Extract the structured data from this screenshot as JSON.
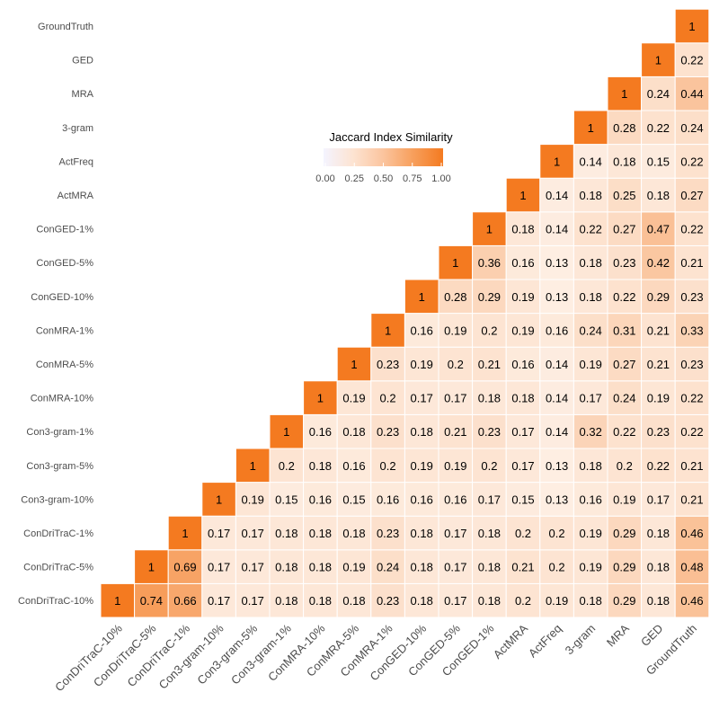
{
  "chart_data": {
    "type": "heatmap",
    "title": "",
    "xlabel": "",
    "ylabel": "",
    "categories": [
      "ConDriTraC-10%",
      "ConDriTraC-5%",
      "ConDriTraC-1%",
      "Con3-gram-10%",
      "Con3-gram-5%",
      "Con3-gram-1%",
      "ConMRA-10%",
      "ConMRA-5%",
      "ConMRA-1%",
      "ConGED-10%",
      "ConGED-5%",
      "ConGED-1%",
      "ActMRA",
      "ActFreq",
      "3-gram",
      "MRA",
      "GED",
      "GroundTruth"
    ],
    "rows": [
      {
        "name": "ConDriTraC-10%",
        "values": [
          1,
          0.74,
          0.66,
          0.17,
          0.17,
          0.18,
          0.18,
          0.18,
          0.23,
          0.18,
          0.17,
          0.18,
          0.2,
          0.19,
          0.18,
          0.29,
          0.18,
          0.46
        ]
      },
      {
        "name": "ConDriTraC-5%",
        "values": [
          1,
          0.69,
          0.17,
          0.17,
          0.18,
          0.18,
          0.19,
          0.24,
          0.18,
          0.17,
          0.18,
          0.21,
          0.2,
          0.19,
          0.29,
          0.18,
          0.48
        ]
      },
      {
        "name": "ConDriTraC-1%",
        "values": [
          1,
          0.17,
          0.17,
          0.18,
          0.18,
          0.18,
          0.23,
          0.18,
          0.17,
          0.18,
          0.2,
          0.2,
          0.19,
          0.29,
          0.18,
          0.46
        ]
      },
      {
        "name": "Con3-gram-10%",
        "values": [
          1,
          0.19,
          0.15,
          0.16,
          0.15,
          0.16,
          0.16,
          0.16,
          0.17,
          0.15,
          0.13,
          0.16,
          0.19,
          0.17,
          0.21
        ]
      },
      {
        "name": "Con3-gram-5%",
        "values": [
          1,
          0.2,
          0.18,
          0.16,
          0.2,
          0.19,
          0.19,
          0.2,
          0.17,
          0.13,
          0.18,
          0.2,
          0.22,
          0.21
        ]
      },
      {
        "name": "Con3-gram-1%",
        "values": [
          1,
          0.16,
          0.18,
          0.23,
          0.18,
          0.21,
          0.23,
          0.17,
          0.14,
          0.32,
          0.22,
          0.23,
          0.22
        ]
      },
      {
        "name": "ConMRA-10%",
        "values": [
          1,
          0.19,
          0.2,
          0.17,
          0.17,
          0.18,
          0.18,
          0.14,
          0.17,
          0.24,
          0.19,
          0.22
        ]
      },
      {
        "name": "ConMRA-5%",
        "values": [
          1,
          0.23,
          0.19,
          0.2,
          0.21,
          0.16,
          0.14,
          0.19,
          0.27,
          0.21,
          0.23
        ]
      },
      {
        "name": "ConMRA-1%",
        "values": [
          1,
          0.16,
          0.19,
          0.2,
          0.19,
          0.16,
          0.24,
          0.31,
          0.21,
          0.33
        ]
      },
      {
        "name": "ConGED-10%",
        "values": [
          1,
          0.28,
          0.29,
          0.19,
          0.13,
          0.18,
          0.22,
          0.29,
          0.23
        ]
      },
      {
        "name": "ConGED-5%",
        "values": [
          1,
          0.36,
          0.16,
          0.13,
          0.18,
          0.23,
          0.42,
          0.21
        ]
      },
      {
        "name": "ConGED-1%",
        "values": [
          1,
          0.18,
          0.14,
          0.22,
          0.27,
          0.47,
          0.22
        ]
      },
      {
        "name": "ActMRA",
        "values": [
          1,
          0.14,
          0.18,
          0.25,
          0.18,
          0.27
        ]
      },
      {
        "name": "ActFreq",
        "values": [
          1,
          0.14,
          0.18,
          0.15,
          0.22
        ]
      },
      {
        "name": "3-gram",
        "values": [
          1,
          0.28,
          0.22,
          0.24
        ]
      },
      {
        "name": "MRA",
        "values": [
          1,
          0.24,
          0.44
        ]
      },
      {
        "name": "GED",
        "values": [
          1,
          0.22
        ]
      },
      {
        "name": "GroundTruth",
        "values": [
          1
        ]
      }
    ],
    "legend": {
      "title": "Jaccard Index Similarity",
      "ticks": [
        "0.00",
        "0.25",
        "0.50",
        "0.75",
        "1.00"
      ],
      "range": [
        0,
        1
      ],
      "position": "inside-upper-middle"
    },
    "colors": {
      "low": "#ffffff",
      "mid_low": "#f7f7ff",
      "high": "#f47a20",
      "grid_line": "#ffffff"
    }
  }
}
